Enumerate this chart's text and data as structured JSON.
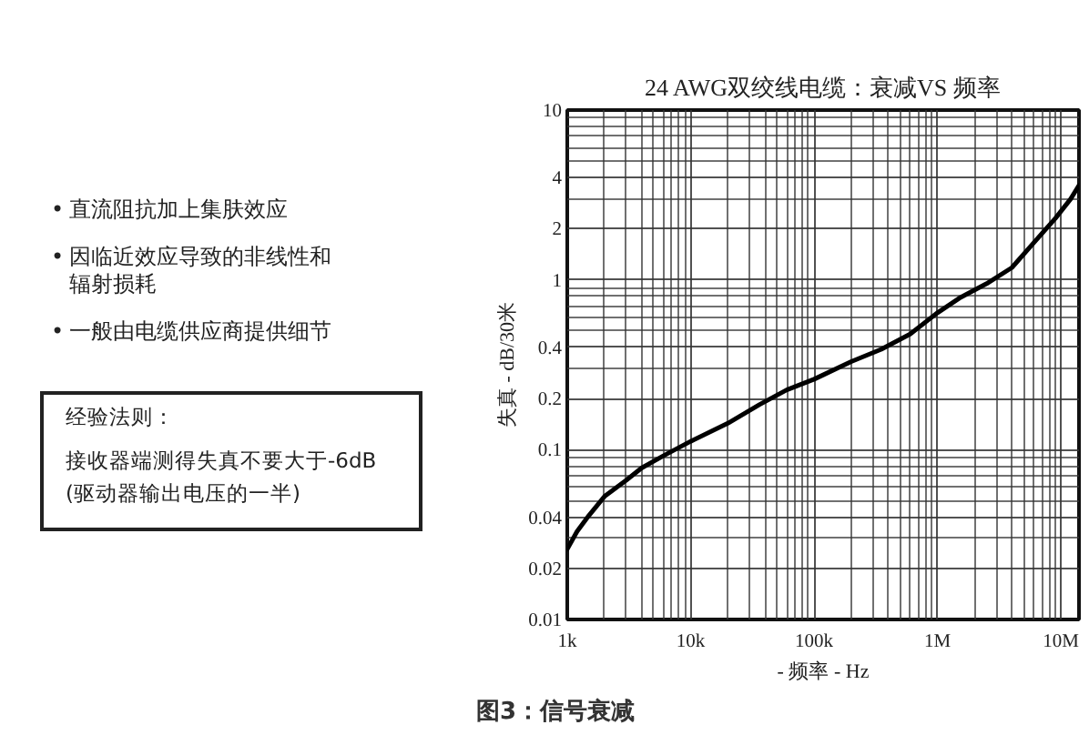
{
  "chart_data": {
    "type": "line",
    "title": "24 AWG双绞线电缆：衰减VS 频率",
    "xlabel": "- 频率 - Hz",
    "ylabel": "失真 - dB/30米",
    "x": [
      1000,
      1200,
      1500,
      2000,
      3000,
      4000,
      6000,
      10000,
      20000,
      36000,
      60000,
      100000,
      200000,
      350000,
      600000,
      1000000,
      1500000,
      2500000,
      4000000,
      6000000,
      9000000,
      12000000,
      14000000
    ],
    "series": [
      {
        "color": "#000000",
        "values": [
          0.026,
          0.033,
          0.041,
          0.053,
          0.066,
          0.078,
          0.092,
          0.112,
          0.143,
          0.184,
          0.225,
          0.26,
          0.33,
          0.39,
          0.48,
          0.64,
          0.78,
          0.95,
          1.18,
          1.65,
          2.3,
          3.0,
          3.6
        ]
      }
    ],
    "log": "xy",
    "xlim": [
      1000,
      14000000
    ],
    "ylim": [
      0.01,
      10
    ],
    "xticks": [
      {
        "value": 1000,
        "label": "1k"
      },
      {
        "value": 2000,
        "label": null
      },
      {
        "value": 3000,
        "label": null
      },
      {
        "value": 4000,
        "label": null
      },
      {
        "value": 5000,
        "label": null
      },
      {
        "value": 6000,
        "label": null
      },
      {
        "value": 7000,
        "label": null
      },
      {
        "value": 8000,
        "label": null
      },
      {
        "value": 9000,
        "label": null
      },
      {
        "value": 10000,
        "label": "10k"
      },
      {
        "value": 20000,
        "label": null
      },
      {
        "value": 30000,
        "label": null
      },
      {
        "value": 40000,
        "label": null
      },
      {
        "value": 50000,
        "label": null
      },
      {
        "value": 60000,
        "label": null
      },
      {
        "value": 70000,
        "label": null
      },
      {
        "value": 80000,
        "label": null
      },
      {
        "value": 90000,
        "label": null
      },
      {
        "value": 100000,
        "label": "100k"
      },
      {
        "value": 200000,
        "label": null
      },
      {
        "value": 300000,
        "label": null
      },
      {
        "value": 400000,
        "label": null
      },
      {
        "value": 500000,
        "label": null
      },
      {
        "value": 600000,
        "label": null
      },
      {
        "value": 700000,
        "label": null
      },
      {
        "value": 800000,
        "label": null
      },
      {
        "value": 900000,
        "label": null
      },
      {
        "value": 1000000,
        "label": "1M"
      },
      {
        "value": 2000000,
        "label": null
      },
      {
        "value": 3000000,
        "label": null
      },
      {
        "value": 4000000,
        "label": null
      },
      {
        "value": 5000000,
        "label": null
      },
      {
        "value": 6000000,
        "label": null
      },
      {
        "value": 7000000,
        "label": null
      },
      {
        "value": 8000000,
        "label": null
      },
      {
        "value": 9000000,
        "label": null
      },
      {
        "value": 10000000,
        "label": "10M"
      }
    ],
    "yticks": [
      0.01,
      0.02,
      {
        "value": 0.03,
        "label": null
      },
      0.04,
      {
        "value": 0.05,
        "label": null
      },
      {
        "value": 0.06,
        "label": null
      },
      {
        "value": 0.07,
        "label": null
      },
      {
        "value": 0.08,
        "label": null
      },
      {
        "value": 0.09,
        "label": null
      },
      0.1,
      0.2,
      {
        "value": 0.3,
        "label": null
      },
      0.4,
      {
        "value": 0.5,
        "label": null
      },
      {
        "value": 0.6,
        "label": null
      },
      {
        "value": 0.7,
        "label": null
      },
      {
        "value": 0.8,
        "label": null
      },
      {
        "value": 0.9,
        "label": null
      },
      1,
      2,
      {
        "value": 3,
        "label": null
      },
      4,
      {
        "value": 5,
        "label": null
      },
      {
        "value": 6,
        "label": null
      },
      {
        "value": 7,
        "label": null
      },
      {
        "value": 8,
        "label": null
      },
      {
        "value": 9,
        "label": null
      },
      10
    ],
    "grid": true,
    "annotations": [
      "• 直流阻抗加上集肤效应",
      "• 因临近效应导致的非线性和辐射损耗",
      "• 一般由电缆供应商提供细节",
      "经验法则：",
      "接收器端测得失真不要大于-6dB",
      "(驱动器输出电压的一半)",
      "图3：信号衰减"
    ]
  }
}
